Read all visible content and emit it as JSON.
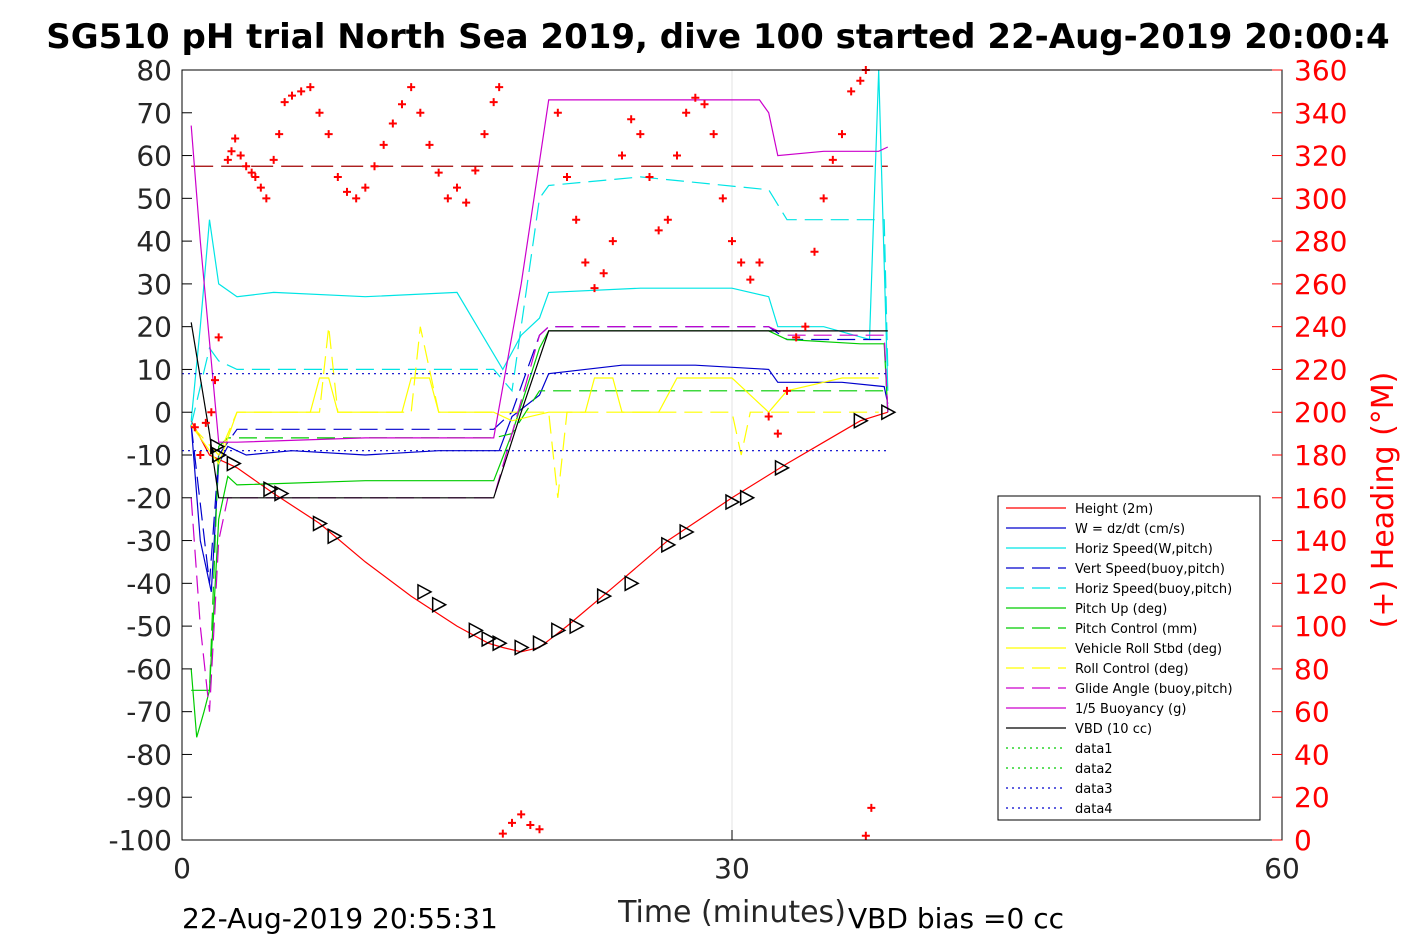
{
  "chart_data": {
    "type": "line",
    "title": "SG510 pH trial North Sea 2019, dive 100 started 22-Aug-2019 20:00:4",
    "xlabel": "Time (minutes)",
    "ylabel_right": "(+) Heading (°M)",
    "xlim": [
      0,
      60
    ],
    "ylim": [
      -100,
      80
    ],
    "y2lim": [
      0,
      360
    ],
    "x_ticks": [
      "0",
      "30",
      "60"
    ],
    "y_ticks": [
      "80",
      "70",
      "60",
      "50",
      "40",
      "30",
      "20",
      "10",
      "0",
      "-10",
      "-20",
      "-30",
      "-40",
      "-50",
      "-60",
      "-70",
      "-80",
      "-90",
      "-100"
    ],
    "y2_ticks": [
      "360",
      "340",
      "320",
      "300",
      "280",
      "260",
      "240",
      "220",
      "200",
      "180",
      "160",
      "140",
      "120",
      "100",
      "80",
      "60",
      "40",
      "20",
      "0"
    ],
    "grid": "x-only",
    "legend_position": "bottom-right",
    "footer_left": "22-Aug-2019 20:55:31",
    "footer_right": "VBD bias =0 cc",
    "colors": {
      "height": "#ff0000",
      "w": "#0000cd",
      "horiz_w": "#00e5e5",
      "vert_buoy": "#0000cd",
      "horiz_buoy": "#00e5e5",
      "pitch": "#00cc00",
      "pitch_ctrl": "#00cc00",
      "roll": "#ffff00",
      "roll_ctrl": "#ffff00",
      "glide": "#cc00cc",
      "buoy": "#cc00cc",
      "vbd": "#000000",
      "heading": "#ff0000",
      "axis_right": "#ff0000"
    },
    "series": [
      {
        "name": "Height (2m)",
        "style": "solid",
        "color": "#ff0000",
        "x": [
          0.5,
          1.5,
          3.0,
          5.0,
          7.5,
          10.0,
          12.5,
          15.0,
          16.7,
          17.5,
          18.5,
          19.5,
          21.0,
          23.5,
          26.5,
          30.0,
          33.0,
          35.0,
          37.0,
          38.5
        ],
        "y": [
          -2,
          -10,
          -13,
          -19,
          -26,
          -35,
          -43,
          -50,
          -54,
          -55,
          -56,
          -55,
          -50,
          -41,
          -30,
          -20,
          -12,
          -7,
          -2,
          0
        ]
      },
      {
        "name": "W = dz/dt (cm/s)",
        "style": "solid",
        "color": "#0000cd",
        "x": [
          0.5,
          1.0,
          1.6,
          2.0,
          2.5,
          3.5,
          6.0,
          10.0,
          14.0,
          17.3,
          18.0,
          19.5,
          20.0,
          24.0,
          28.0,
          32.0,
          32.5,
          36.0,
          38.3,
          38.5
        ],
        "y": [
          -3,
          -30,
          -42,
          -12,
          -8,
          -10,
          -9,
          -10,
          -9,
          -9,
          -1,
          4,
          9,
          11,
          11,
          10,
          7,
          7,
          6,
          2
        ]
      },
      {
        "name": "Horiz Speed(W,pitch)",
        "style": "solid",
        "color": "#00e5e5",
        "x": [
          0.5,
          1.0,
          1.5,
          2.0,
          3.0,
          5.0,
          10.0,
          15.0,
          17.5,
          18.5,
          19.5,
          20.0,
          25.0,
          30.0,
          32.0,
          32.5,
          35.0,
          37.5,
          38.0,
          38.5
        ],
        "y": [
          -2,
          20,
          45,
          30,
          27,
          28,
          27,
          28,
          10,
          18,
          22,
          28,
          29,
          29,
          27,
          20,
          20,
          17,
          80,
          5
        ]
      },
      {
        "name": "Vert Speed(buoy,pitch)",
        "style": "dashed",
        "color": "#0000cd",
        "x": [
          0.5,
          1.5,
          2.0,
          3.0,
          10.0,
          17.0,
          18.0,
          19.5,
          20.0,
          25.0,
          32.0,
          33.0,
          37.0,
          38.3,
          38.5
        ],
        "y": [
          -3,
          -40,
          -10,
          -4,
          -4,
          -4,
          0,
          18,
          20,
          20,
          20,
          17,
          17,
          17,
          0
        ]
      },
      {
        "name": "Horiz Speed(buoy,pitch)",
        "style": "dashed",
        "color": "#00e5e5",
        "x": [
          0.5,
          1.5,
          2.0,
          3.0,
          10.0,
          17.0,
          18.0,
          19.5,
          20.0,
          25.0,
          32.0,
          33.0,
          37.0,
          38.3,
          38.5
        ],
        "y": [
          -3,
          15,
          12,
          10,
          10,
          10,
          5,
          50,
          53,
          55,
          52,
          45,
          45,
          45,
          10
        ]
      },
      {
        "name": "Pitch Up (deg)",
        "style": "solid",
        "color": "#00cc00",
        "x": [
          0.5,
          0.8,
          1.2,
          1.5,
          2.0,
          2.5,
          3.0,
          10.0,
          17.0,
          18.0,
          19.5,
          20.0,
          25.0,
          32.0,
          33.0,
          37.0,
          38.3,
          38.5
        ],
        "y": [
          -60,
          -76,
          -70,
          -65,
          -25,
          -15,
          -17,
          -16,
          -16,
          -5,
          15,
          19,
          19,
          19,
          17,
          16,
          16,
          0
        ]
      },
      {
        "name": "Pitch Control (mm)",
        "style": "dashed",
        "color": "#00cc00",
        "x": [
          0.5,
          1.5,
          2.0,
          2.5,
          10.0,
          17.0,
          18.0,
          19.5,
          20.0,
          30.0,
          38.0,
          38.5
        ],
        "y": [
          -65,
          -65,
          -8,
          -6,
          -6,
          -6,
          -5,
          5,
          5,
          5,
          5,
          5
        ]
      },
      {
        "name": "Vehicle Roll Stbd (deg)",
        "style": "solid",
        "color": "#ffff00",
        "x": [
          0.5,
          2.0,
          3.0,
          7.0,
          7.5,
          8.0,
          8.5,
          12.0,
          12.5,
          13.5,
          14.0,
          17.0,
          18.0,
          20.0,
          22.0,
          22.5,
          23.5,
          24.0,
          26.0,
          27.0,
          30.0,
          32.0,
          33.0,
          36.0,
          38.0
        ],
        "y": [
          -3,
          -12,
          0,
          0,
          8,
          8,
          0,
          0,
          8,
          8,
          0,
          0,
          -2,
          0,
          0,
          8,
          8,
          0,
          0,
          8,
          8,
          0,
          5,
          8,
          8
        ]
      },
      {
        "name": "Roll Control (deg)",
        "style": "dashed",
        "color": "#ffff00",
        "x": [
          0.5,
          2.0,
          3.0,
          7.5,
          8.0,
          8.5,
          12.5,
          13.0,
          14.0,
          17.0,
          18.0,
          20.0,
          20.5,
          21.0,
          25.0,
          28.0,
          30.0,
          30.5,
          31.0,
          38.0
        ],
        "y": [
          -3,
          -10,
          0,
          0,
          20,
          0,
          0,
          20,
          0,
          0,
          0,
          0,
          -20,
          0,
          0,
          0,
          0,
          -10,
          0,
          0
        ]
      },
      {
        "name": "Glide Angle (buoy,pitch)",
        "style": "dashed",
        "color": "#cc00cc",
        "x": [
          0.5,
          1.0,
          1.5,
          2.0,
          2.5,
          3.0,
          10.0,
          17.0,
          18.0,
          19.5,
          20.0,
          25.0,
          32.0,
          33.0,
          37.0,
          38.3,
          38.5
        ],
        "y": [
          -20,
          -50,
          -70,
          -30,
          -20,
          -20,
          -20,
          -20,
          -5,
          18,
          20,
          20,
          20,
          18,
          18,
          18,
          0
        ]
      },
      {
        "name": "1/5 Buoyancy (g)",
        "style": "solid",
        "color": "#cc00cc",
        "x": [
          0.5,
          1.0,
          2.0,
          3.0,
          10.0,
          17.0,
          18.5,
          20.0,
          25.0,
          30.0,
          31.5,
          32.0,
          32.5,
          35.0,
          38.0,
          38.5
        ],
        "y": [
          67,
          40,
          -7,
          -7,
          -6,
          -6,
          30,
          73,
          73,
          73,
          73,
          70,
          60,
          61,
          61,
          62
        ]
      },
      {
        "name": "VBD (10 cc)",
        "style": "solid",
        "color": "#000000",
        "x": [
          0.5,
          1.5,
          2.0,
          17.0,
          18.5,
          20.0,
          30.0,
          38.5
        ],
        "y": [
          21,
          -5,
          -20,
          -20,
          0,
          19,
          19,
          19
        ]
      },
      {
        "name": "data1",
        "style": "dotted",
        "color": "#00cc00",
        "x": [],
        "y": []
      },
      {
        "name": "data2",
        "style": "dotted",
        "color": "#00cc00",
        "x": [],
        "y": []
      },
      {
        "name": "data3",
        "style": "dotted",
        "color": "#0000cd",
        "x": [
          0,
          38.5
        ],
        "y": [
          9,
          9
        ]
      },
      {
        "name": "data4",
        "style": "dotted",
        "color": "#0000cd",
        "x": [
          0,
          38.5
        ],
        "y": [
          -9,
          -9
        ]
      }
    ],
    "heading_reference_deg": 315,
    "heading_points": [
      [
        0.7,
        193
      ],
      [
        1.0,
        180
      ],
      [
        1.3,
        195
      ],
      [
        1.6,
        200
      ],
      [
        1.8,
        215
      ],
      [
        2.0,
        235
      ],
      [
        2.5,
        318
      ],
      [
        2.7,
        322
      ],
      [
        2.9,
        328
      ],
      [
        3.2,
        320
      ],
      [
        3.5,
        315
      ],
      [
        3.8,
        312
      ],
      [
        4.0,
        310
      ],
      [
        4.3,
        305
      ],
      [
        4.6,
        300
      ],
      [
        5.0,
        318
      ],
      [
        5.3,
        330
      ],
      [
        5.6,
        345
      ],
      [
        6.0,
        348
      ],
      [
        6.5,
        350
      ],
      [
        7.0,
        352
      ],
      [
        7.5,
        340
      ],
      [
        8.0,
        330
      ],
      [
        8.5,
        310
      ],
      [
        9.0,
        303
      ],
      [
        9.5,
        300
      ],
      [
        10.0,
        305
      ],
      [
        10.5,
        315
      ],
      [
        11.0,
        325
      ],
      [
        11.5,
        335
      ],
      [
        12.0,
        344
      ],
      [
        12.5,
        352
      ],
      [
        13.0,
        340
      ],
      [
        13.5,
        325
      ],
      [
        14.0,
        312
      ],
      [
        14.5,
        300
      ],
      [
        15.0,
        305
      ],
      [
        15.5,
        298
      ],
      [
        16.0,
        313
      ],
      [
        16.5,
        330
      ],
      [
        17.0,
        345
      ],
      [
        17.3,
        352
      ],
      [
        17.5,
        3
      ],
      [
        18.0,
        8
      ],
      [
        18.5,
        12
      ],
      [
        19.0,
        7
      ],
      [
        19.5,
        5
      ],
      [
        20.5,
        340
      ],
      [
        21.0,
        310
      ],
      [
        21.5,
        290
      ],
      [
        22.0,
        270
      ],
      [
        22.5,
        258
      ],
      [
        23.0,
        265
      ],
      [
        23.5,
        280
      ],
      [
        24.0,
        320
      ],
      [
        24.5,
        337
      ],
      [
        25.0,
        330
      ],
      [
        25.5,
        310
      ],
      [
        26.0,
        285
      ],
      [
        26.5,
        290
      ],
      [
        27.0,
        320
      ],
      [
        27.5,
        340
      ],
      [
        28.0,
        347
      ],
      [
        28.5,
        344
      ],
      [
        29.0,
        330
      ],
      [
        29.5,
        300
      ],
      [
        30.0,
        280
      ],
      [
        30.5,
        270
      ],
      [
        31.0,
        262
      ],
      [
        31.5,
        270
      ],
      [
        32.0,
        198
      ],
      [
        32.5,
        190
      ],
      [
        33.0,
        210
      ],
      [
        33.5,
        235
      ],
      [
        34.0,
        240
      ],
      [
        34.5,
        275
      ],
      [
        35.0,
        300
      ],
      [
        35.5,
        318
      ],
      [
        36.0,
        330
      ],
      [
        36.5,
        350
      ],
      [
        37.0,
        355
      ],
      [
        37.3,
        360
      ],
      [
        37.3,
        2
      ],
      [
        37.6,
        15
      ]
    ],
    "triangle_markers": [
      [
        1.9,
        -8
      ],
      [
        2.0,
        -10
      ],
      [
        2.8,
        -12
      ],
      [
        4.8,
        -18
      ],
      [
        5.4,
        -19
      ],
      [
        7.5,
        -26
      ],
      [
        8.3,
        -29
      ],
      [
        13.2,
        -42
      ],
      [
        14.0,
        -45
      ],
      [
        16.0,
        -51
      ],
      [
        16.7,
        -53
      ],
      [
        17.3,
        -54
      ],
      [
        18.5,
        -55
      ],
      [
        19.5,
        -54
      ],
      [
        20.5,
        -51
      ],
      [
        21.5,
        -50
      ],
      [
        23.0,
        -43
      ],
      [
        24.5,
        -40
      ],
      [
        26.5,
        -31
      ],
      [
        27.5,
        -28
      ],
      [
        30.0,
        -21
      ],
      [
        30.8,
        -20
      ],
      [
        32.7,
        -13
      ],
      [
        37.0,
        -2
      ],
      [
        38.5,
        0
      ]
    ]
  }
}
